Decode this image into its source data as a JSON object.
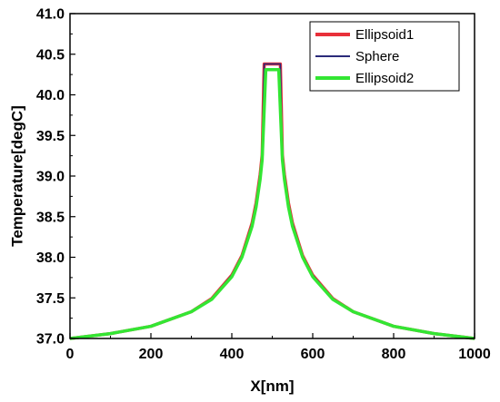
{
  "chart_data": {
    "type": "line",
    "title": "",
    "xlabel": "X[nm]",
    "ylabel": "Temperature[degC]",
    "xlim": [
      0,
      1000
    ],
    "ylim": [
      37.0,
      41.0
    ],
    "x_ticks": [
      "0",
      "200",
      "400",
      "600",
      "800",
      "1000"
    ],
    "y_ticks": [
      "37.0",
      "37.5",
      "38.0",
      "38.5",
      "39.0",
      "39.5",
      "40.0",
      "40.5",
      "41.0"
    ],
    "grid": false,
    "legend_position": "top-right",
    "series": [
      {
        "name": "Ellipsoid1",
        "color": "#e8303a",
        "x": [
          0,
          100,
          200,
          300,
          350,
          400,
          425,
          450,
          460,
          470,
          475,
          480,
          520,
          525,
          530,
          540,
          550,
          575,
          600,
          650,
          700,
          800,
          900,
          1000
        ],
        "y": [
          37.0,
          37.06,
          37.15,
          37.33,
          37.49,
          37.78,
          38.02,
          38.42,
          38.67,
          39.02,
          39.26,
          40.38,
          40.38,
          39.26,
          39.02,
          38.67,
          38.42,
          38.02,
          37.78,
          37.49,
          37.33,
          37.15,
          37.06,
          37.0
        ]
      },
      {
        "name": "Sphere",
        "color": "#2a2a7a",
        "x": [
          0,
          100,
          200,
          300,
          350,
          400,
          425,
          450,
          460,
          470,
          475,
          480,
          520,
          525,
          530,
          540,
          550,
          575,
          600,
          650,
          700,
          800,
          900,
          1000
        ],
        "y": [
          37.0,
          37.06,
          37.15,
          37.33,
          37.49,
          37.78,
          38.02,
          38.42,
          38.67,
          39.02,
          39.26,
          40.38,
          40.38,
          39.26,
          39.02,
          38.67,
          38.42,
          38.02,
          37.78,
          37.49,
          37.33,
          37.15,
          37.06,
          37.0
        ]
      },
      {
        "name": "Ellipsoid2",
        "color": "#33e633",
        "x": [
          0,
          100,
          200,
          300,
          350,
          400,
          425,
          450,
          460,
          470,
          475,
          484,
          516,
          525,
          530,
          540,
          550,
          575,
          600,
          650,
          700,
          800,
          900,
          1000
        ],
        "y": [
          37.0,
          37.06,
          37.15,
          37.33,
          37.48,
          37.76,
          38.0,
          38.38,
          38.62,
          38.96,
          39.2,
          40.31,
          40.31,
          39.2,
          38.96,
          38.62,
          38.38,
          38.0,
          37.76,
          37.48,
          37.33,
          37.15,
          37.06,
          37.0
        ]
      }
    ]
  }
}
